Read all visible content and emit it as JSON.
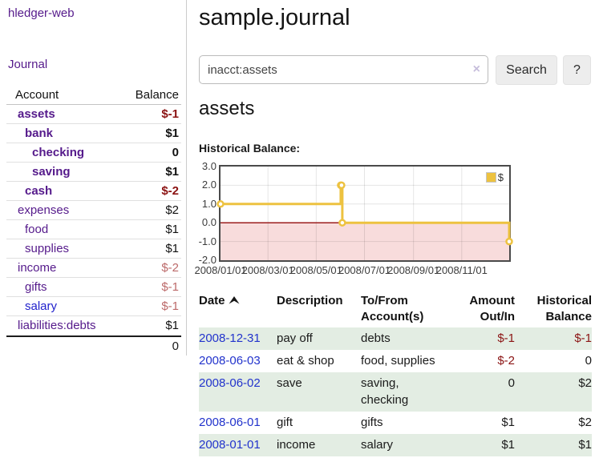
{
  "app": {
    "brand": "hledger-web",
    "nav": {
      "journal": "Journal"
    }
  },
  "sidebar": {
    "header": {
      "account": "Account",
      "balance": "Balance"
    },
    "accounts": [
      {
        "name": "assets",
        "balance": "$-1",
        "level": 0,
        "matched": true,
        "link_color": "purple",
        "balance_class": "neg"
      },
      {
        "name": "bank",
        "balance": "$1",
        "level": 1,
        "matched": true,
        "link_color": "purple",
        "balance_class": "pos"
      },
      {
        "name": "checking",
        "balance": "0",
        "level": 2,
        "matched": true,
        "link_color": "purple",
        "balance_class": "pos"
      },
      {
        "name": "saving",
        "balance": "$1",
        "level": 2,
        "matched": true,
        "link_color": "purple",
        "balance_class": "pos"
      },
      {
        "name": "cash",
        "balance": "$-2",
        "level": 1,
        "matched": true,
        "link_color": "purple",
        "balance_class": "neg"
      },
      {
        "name": "expenses",
        "balance": "$2",
        "level": 0,
        "matched": false,
        "link_color": "purple",
        "balance_class": "pos"
      },
      {
        "name": "food",
        "balance": "$1",
        "level": 1,
        "matched": false,
        "link_color": "purple",
        "balance_class": "pos"
      },
      {
        "name": "supplies",
        "balance": "$1",
        "level": 1,
        "matched": false,
        "link_color": "purple",
        "balance_class": "pos"
      },
      {
        "name": "income",
        "balance": "$-2",
        "level": 0,
        "matched": false,
        "link_color": "purple",
        "balance_class": "negsoft"
      },
      {
        "name": "gifts",
        "balance": "$-1",
        "level": 1,
        "matched": false,
        "link_color": "purple",
        "balance_class": "negsoft"
      },
      {
        "name": "salary",
        "balance": "$-1",
        "level": 1,
        "matched": false,
        "link_color": "blue",
        "balance_class": "negsoft"
      },
      {
        "name": "liabilities:debts",
        "balance": "$1",
        "level": 0,
        "matched": false,
        "link_color": "purple",
        "balance_class": "pos"
      }
    ],
    "total": "0"
  },
  "header": {
    "title": "sample.journal"
  },
  "search": {
    "value": "inacct:assets",
    "clear_icon": "×",
    "button_label": "Search",
    "help_label": "?"
  },
  "main": {
    "account_heading": "assets",
    "chart_heading": "Historical Balance:"
  },
  "chart_data": {
    "type": "line",
    "step": true,
    "title": "Historical Balance:",
    "series": [
      {
        "name": "$",
        "color": "#edc240",
        "points": [
          [
            "2008-01-01",
            1
          ],
          [
            "2008-06-01",
            2
          ],
          [
            "2008-06-02",
            2
          ],
          [
            "2008-06-03",
            0
          ],
          [
            "2008-12-31",
            -1
          ]
        ]
      }
    ],
    "xrange": [
      "2008-01-01",
      "2008-12-31"
    ],
    "ylim": [
      -2,
      3
    ],
    "yticks": [
      3,
      2,
      1,
      0,
      -1,
      -2
    ],
    "ytick_labels": [
      "3.0",
      "2.0",
      "1.0",
      "0.0",
      "-1.0",
      "-2.0"
    ],
    "xticks": [
      "2008-01-01",
      "2008-03-01",
      "2008-05-01",
      "2008-07-01",
      "2008-09-01",
      "2008-11-01"
    ],
    "xtick_labels": [
      "2008/01/01",
      "2008/03/01",
      "2008/05/01",
      "2008/07/01",
      "2008/09/01",
      "2008/11/01"
    ],
    "grid": true,
    "negative_region_fill": "#f8dcdc",
    "zero_line_color": "#9b1c1c",
    "legend": {
      "position": "top-right",
      "entries": [
        "$"
      ]
    }
  },
  "register": {
    "columns": [
      "Date",
      "Description",
      "To/From Account(s)",
      "Amount Out/In",
      "Historical Balance"
    ],
    "rows": [
      {
        "date": "2008-12-31",
        "description": "pay off",
        "accounts": "debts",
        "amount": "$-1",
        "amount_neg": true,
        "balance": "$-1",
        "balance_neg": true
      },
      {
        "date": "2008-06-03",
        "description": "eat & shop",
        "accounts": "food, supplies",
        "amount": "$-2",
        "amount_neg": true,
        "balance": "0",
        "balance_neg": false
      },
      {
        "date": "2008-06-02",
        "description": "save",
        "accounts": "saving, checking",
        "amount": "0",
        "amount_neg": false,
        "balance": "$2",
        "balance_neg": false
      },
      {
        "date": "2008-06-01",
        "description": "gift",
        "accounts": "gifts",
        "amount": "$1",
        "amount_neg": false,
        "balance": "$2",
        "balance_neg": false
      },
      {
        "date": "2008-01-01",
        "description": "income",
        "accounts": "salary",
        "amount": "$1",
        "amount_neg": false,
        "balance": "$1",
        "balance_neg": false
      }
    ]
  }
}
